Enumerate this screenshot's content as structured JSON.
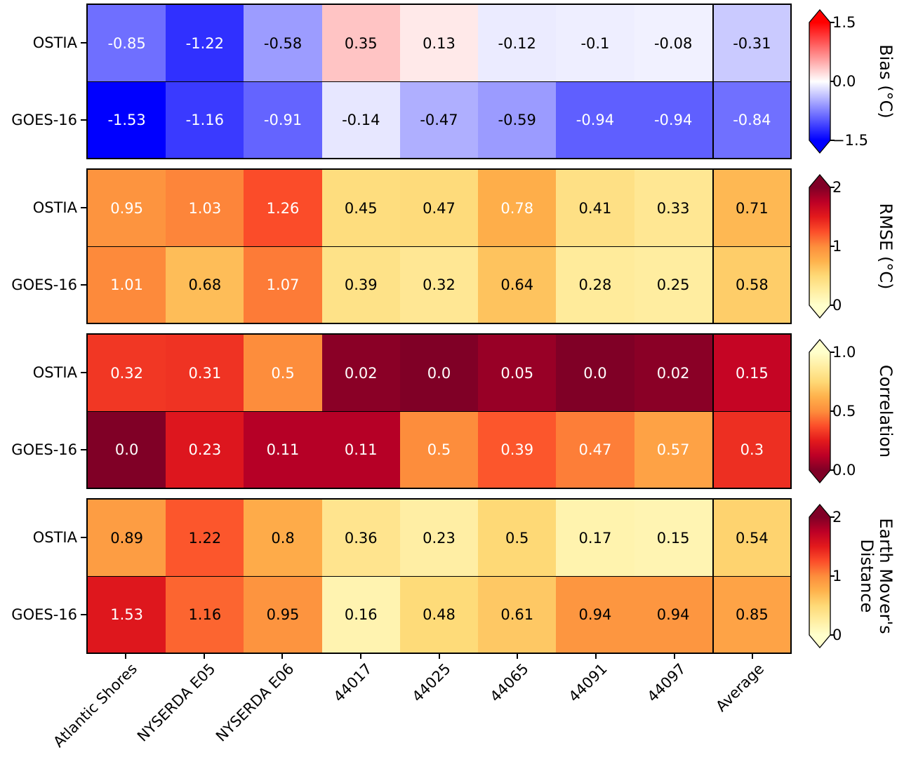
{
  "colors": {
    "background": "#ffffff",
    "axis_line": "#000000",
    "cell_text_light": "#ffffff",
    "cell_text_dark": "#000000",
    "colormaps": {
      "bwr": {
        "positions": [
          0,
          0.5,
          1
        ],
        "colors": [
          "#0000ff",
          "#ffffff",
          "#ff0000"
        ]
      },
      "YlOrRd": {
        "positions": [
          0,
          0.125,
          0.25,
          0.375,
          0.5,
          0.625,
          0.75,
          0.875,
          1
        ],
        "colors": [
          "#ffffcc",
          "#ffeda0",
          "#fed976",
          "#feb24c",
          "#fd8d3c",
          "#fc4e2a",
          "#e31a1c",
          "#bd0026",
          "#800026"
        ]
      }
    }
  },
  "chart_data": [
    {
      "type": "heatmap",
      "metric": "Bias",
      "rows": [
        "OSTIA",
        "GOES-16"
      ],
      "columns": [
        "Atlantic Shores",
        "NYSERDA E05",
        "NYSERDA E06",
        "44017",
        "44025",
        "44065",
        "44091",
        "44097",
        "Average"
      ],
      "values": [
        [
          "-0.85",
          "-1.22",
          "-0.58",
          "0.35",
          "0.13",
          "-0.12",
          "-0.1",
          "-0.08",
          "-0.31"
        ],
        [
          "-1.53",
          "-1.16",
          "-0.91",
          "-0.14",
          "-0.47",
          "-0.59",
          "-0.94",
          "-0.94",
          "-0.84"
        ]
      ],
      "text_colors": [
        [
          "w",
          "w",
          "k",
          "k",
          "k",
          "k",
          "k",
          "k",
          "k"
        ],
        [
          "w",
          "w",
          "w",
          "k",
          "k",
          "k",
          "w",
          "w",
          "w"
        ]
      ],
      "colormap": "bwr",
      "vmin": -1.5,
      "vmax": 1.5,
      "colorbar": {
        "title": "Bias (°C)",
        "extend": "both",
        "ticks": [
          {
            "label": "1.5",
            "pos": 0
          },
          {
            "label": "0.0",
            "pos": 0.5
          },
          {
            "label": "−1.5",
            "pos": 1
          }
        ]
      }
    },
    {
      "type": "heatmap",
      "metric": "RMSE",
      "rows": [
        "OSTIA",
        "GOES-16"
      ],
      "columns": [
        "Atlantic Shores",
        "NYSERDA E05",
        "NYSERDA E06",
        "44017",
        "44025",
        "44065",
        "44091",
        "44097",
        "Average"
      ],
      "values": [
        [
          "0.95",
          "1.03",
          "1.26",
          "0.45",
          "0.47",
          "0.78",
          "0.41",
          "0.33",
          "0.71"
        ],
        [
          "1.01",
          "0.68",
          "1.07",
          "0.39",
          "0.32",
          "0.64",
          "0.28",
          "0.25",
          "0.58"
        ]
      ],
      "text_colors": [
        [
          "w",
          "w",
          "w",
          "k",
          "k",
          "w",
          "k",
          "k",
          "k"
        ],
        [
          "w",
          "k",
          "w",
          "k",
          "k",
          "k",
          "k",
          "k",
          "k"
        ]
      ],
      "colormap": "YlOrRd",
      "vmin": 0,
      "vmax": 2,
      "colorbar": {
        "title": "RMSE (°C)",
        "extend": "both",
        "ticks": [
          {
            "label": "2",
            "pos": 0
          },
          {
            "label": "1",
            "pos": 0.5
          },
          {
            "label": "0",
            "pos": 1
          }
        ]
      }
    },
    {
      "type": "heatmap",
      "metric": "Correlation",
      "rows": [
        "OSTIA",
        "GOES-16"
      ],
      "columns": [
        "Atlantic Shores",
        "NYSERDA E05",
        "NYSERDA E06",
        "44017",
        "44025",
        "44065",
        "44091",
        "44097",
        "Average"
      ],
      "values": [
        [
          "0.32",
          "0.31",
          "0.5",
          "0.02",
          "0.0",
          "0.05",
          "0.0",
          "0.02",
          "0.15"
        ],
        [
          "0.0",
          "0.23",
          "0.11",
          "0.11",
          "0.5",
          "0.39",
          "0.47",
          "0.57",
          "0.3"
        ]
      ],
      "text_colors": [
        [
          "w",
          "w",
          "w",
          "w",
          "w",
          "w",
          "w",
          "w",
          "w"
        ],
        [
          "w",
          "w",
          "w",
          "w",
          "w",
          "w",
          "w",
          "w",
          "w"
        ]
      ],
      "colormap": "YlOrRd_r",
      "vmin": 0,
      "vmax": 1,
      "colorbar": {
        "title": "Correlation",
        "extend": "both",
        "ticks": [
          {
            "label": "1.0",
            "pos": 0
          },
          {
            "label": "0.5",
            "pos": 0.5
          },
          {
            "label": "0.0",
            "pos": 1
          }
        ]
      }
    },
    {
      "type": "heatmap",
      "metric": "Earth Mover's Distance",
      "rows": [
        "OSTIA",
        "GOES-16"
      ],
      "columns": [
        "Atlantic Shores",
        "NYSERDA E05",
        "NYSERDA E06",
        "44017",
        "44025",
        "44065",
        "44091",
        "44097",
        "Average"
      ],
      "values": [
        [
          "0.89",
          "1.22",
          "0.8",
          "0.36",
          "0.23",
          "0.5",
          "0.17",
          "0.15",
          "0.54"
        ],
        [
          "1.53",
          "1.16",
          "0.95",
          "0.16",
          "0.48",
          "0.61",
          "0.94",
          "0.94",
          "0.85"
        ]
      ],
      "text_colors": [
        [
          "k",
          "k",
          "k",
          "k",
          "k",
          "k",
          "k",
          "k",
          "k"
        ],
        [
          "w",
          "k",
          "k",
          "k",
          "k",
          "k",
          "k",
          "k",
          "k"
        ]
      ],
      "colormap": "YlOrRd",
      "vmin": 0,
      "vmax": 2,
      "colorbar": {
        "title": "Earth Mover's\nDistance",
        "extend": "both",
        "ticks": [
          {
            "label": "2",
            "pos": 0
          },
          {
            "label": "1",
            "pos": 0.5
          },
          {
            "label": "0",
            "pos": 1
          }
        ]
      }
    }
  ]
}
